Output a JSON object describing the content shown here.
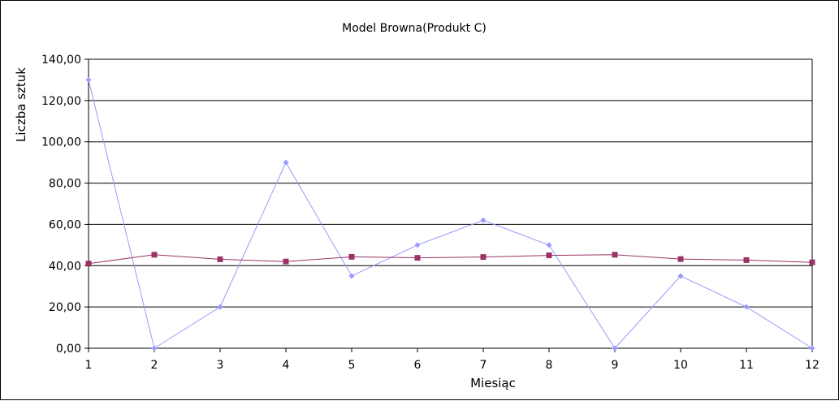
{
  "chart_data": {
    "type": "line",
    "title": "Model Browna(Produkt C)",
    "xlabel": "Miesiąc",
    "ylabel": "Liczba sztuk",
    "categories": [
      "1",
      "2",
      "3",
      "4",
      "5",
      "6",
      "7",
      "8",
      "9",
      "10",
      "11",
      "12"
    ],
    "ylim": [
      0,
      140
    ],
    "yticks": [
      "0,00",
      "20,00",
      "40,00",
      "60,00",
      "80,00",
      "100,00",
      "120,00",
      "140,00"
    ],
    "grid": true,
    "legend": "none",
    "series": [
      {
        "color": "#9999ff",
        "marker": "diamond",
        "values": [
          130,
          0,
          20,
          90,
          35,
          50,
          62,
          50,
          0,
          35,
          20,
          0
        ]
      },
      {
        "color": "#993366",
        "marker": "square",
        "values": [
          41,
          45.3,
          43.1,
          42,
          44.3,
          43.8,
          44.2,
          45,
          45.3,
          43.2,
          42.7,
          41.6
        ]
      }
    ]
  }
}
